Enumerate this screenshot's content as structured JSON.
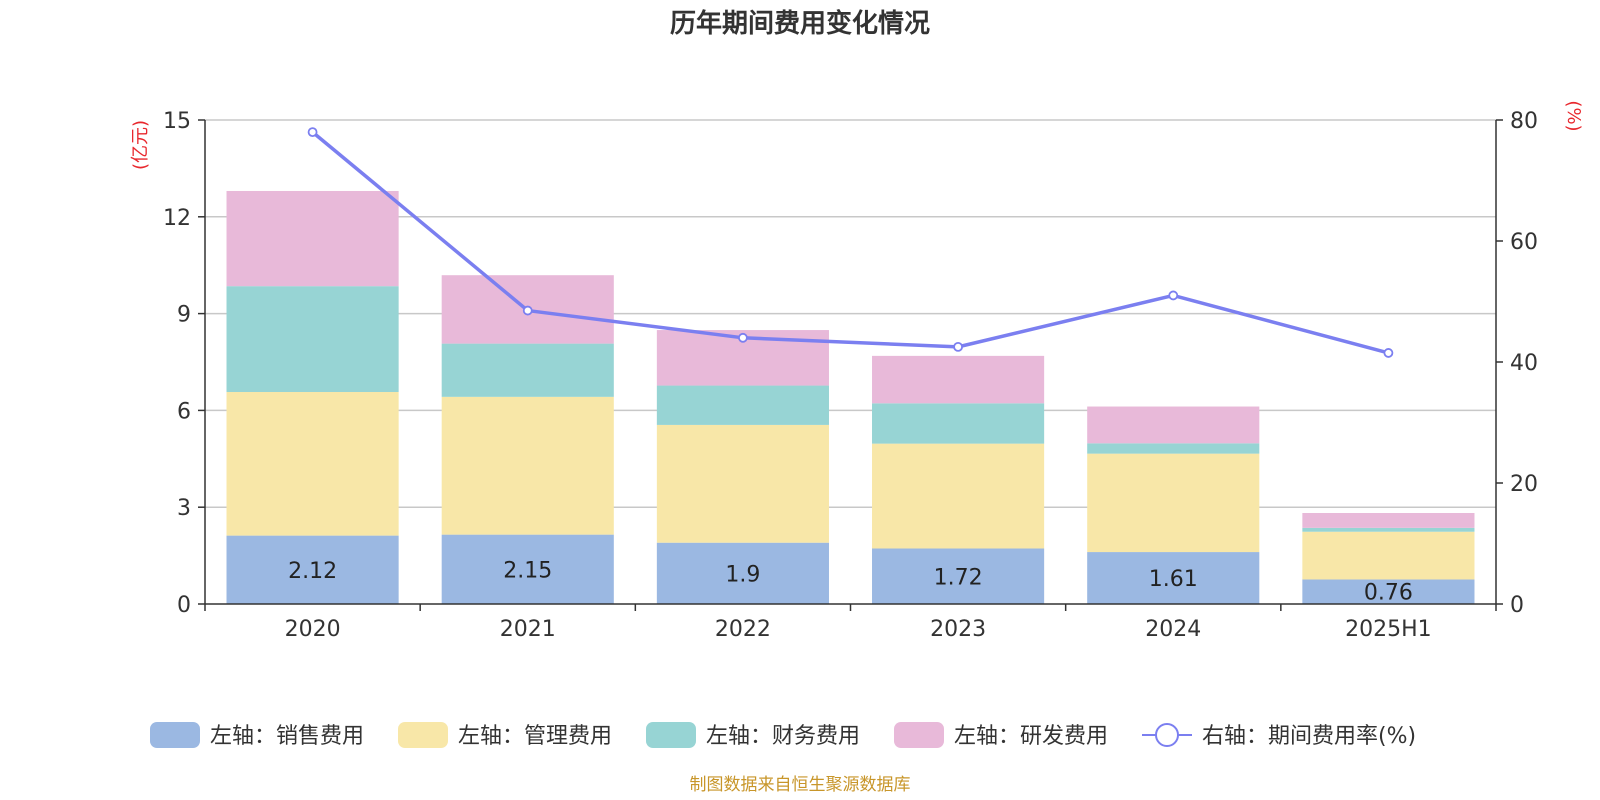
{
  "chart_data": {
    "type": "bar",
    "title": "历年期间费用变化情况",
    "categories": [
      "2020",
      "2021",
      "2022",
      "2023",
      "2024",
      "2025H1"
    ],
    "y_left": {
      "unit": "(亿元)",
      "ylim": [
        0,
        15
      ],
      "ticks": [
        0,
        3,
        6,
        9,
        12,
        15
      ]
    },
    "y_right": {
      "unit": "(%)",
      "ylim": [
        0,
        80
      ],
      "ticks": [
        0,
        20,
        40,
        60,
        80
      ]
    },
    "series": [
      {
        "name": "左轴：销售费用",
        "axis": "left",
        "type": "stacked-bar",
        "color": "#9bb8e2",
        "values": [
          2.12,
          2.15,
          1.9,
          1.72,
          1.61,
          0.76
        ],
        "labels": [
          "2.12",
          "2.15",
          "1.9",
          "1.72",
          "1.61",
          "0.76"
        ]
      },
      {
        "name": "左轴：管理费用",
        "axis": "left",
        "type": "stacked-bar",
        "color": "#f8e7a8",
        "values": [
          4.45,
          4.27,
          3.65,
          3.25,
          3.05,
          1.48
        ]
      },
      {
        "name": "左轴：财务费用",
        "axis": "left",
        "type": "stacked-bar",
        "color": "#97d4d4",
        "values": [
          3.28,
          1.65,
          1.22,
          1.25,
          0.32,
          0.12
        ]
      },
      {
        "name": "左轴：研发费用",
        "axis": "left",
        "type": "stacked-bar",
        "color": "#e8b9d9",
        "values": [
          2.95,
          2.12,
          1.72,
          1.47,
          1.14,
          0.46
        ]
      },
      {
        "name": "右轴：期间费用率(%)",
        "axis": "right",
        "type": "line",
        "color": "#7b7ff0",
        "values": [
          78.0,
          48.5,
          44.0,
          42.5,
          51.0,
          41.5
        ]
      }
    ],
    "grid": true,
    "legend_position": "bottom"
  },
  "footer": {
    "source": "制图数据来自恒生聚源数据库"
  }
}
